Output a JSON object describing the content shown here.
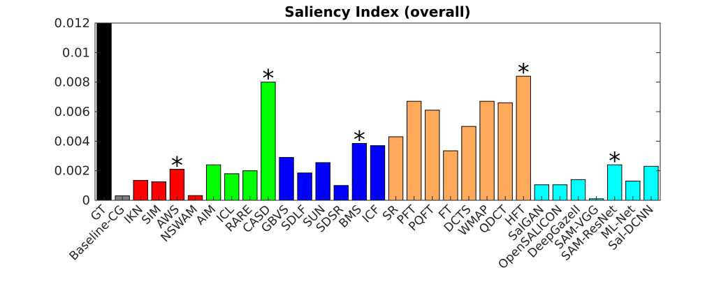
{
  "chart_data": {
    "type": "bar",
    "title": "Saliency Index (overall)",
    "xlabel": "",
    "ylabel": "",
    "ylim": [
      0,
      0.012
    ],
    "yticks": [
      "0",
      "0.002",
      "0.004",
      "0.006",
      "0.008",
      "0.01",
      "0.012"
    ],
    "categories": [
      "GT",
      "Baseline-CG",
      "IKN",
      "SIM",
      "AWS",
      "NSWAM",
      "AIM",
      "ICL",
      "RARE",
      "CASD",
      "GBVS",
      "SDLF",
      "SUN",
      "SDSR",
      "BMS",
      "ICF",
      "SR",
      "PFT",
      "PQFT",
      "FT",
      "DCTS",
      "WMAP",
      "QDCT",
      "HFT",
      "SalGAN",
      "OpenSALICON",
      "DeepGazeII",
      "SAM-VGG",
      "SAM-ResNet",
      "ML-Net",
      "Sal-DCNN"
    ],
    "values": [
      0.012,
      0.0003,
      0.00135,
      0.00125,
      0.0021,
      0.00032,
      0.0024,
      0.0018,
      0.002,
      0.008,
      0.0029,
      0.00185,
      0.00255,
      0.001,
      0.00385,
      0.0037,
      0.0043,
      0.0067,
      0.0061,
      0.00335,
      0.005,
      0.0067,
      0.0066,
      0.0084,
      0.00105,
      0.00105,
      0.0014,
      0.0001,
      0.0024,
      0.0013,
      0.0023
    ],
    "colors": [
      "#000000",
      "#808080",
      "#ff0000",
      "#ff0000",
      "#ff0000",
      "#ff0000",
      "#00ff00",
      "#00ff00",
      "#00ff00",
      "#00ff00",
      "#0000ff",
      "#0000ff",
      "#0000ff",
      "#0000ff",
      "#0000ff",
      "#0000ff",
      "#ffaa5a",
      "#ffaa5a",
      "#ffaa5a",
      "#ffaa5a",
      "#ffaa5a",
      "#ffaa5a",
      "#ffaa5a",
      "#ffaa5a",
      "#00ffff",
      "#00ffff",
      "#00ffff",
      "#00ffff",
      "#00ffff",
      "#00ffff",
      "#00ffff"
    ],
    "annotations": [
      {
        "category": "AWS",
        "text": "*"
      },
      {
        "category": "CASD",
        "text": "*"
      },
      {
        "category": "BMS",
        "text": "*"
      },
      {
        "category": "HFT",
        "text": "*"
      },
      {
        "category": "SAM-ResNet",
        "text": "*"
      }
    ],
    "grid": false,
    "legend": "none"
  }
}
